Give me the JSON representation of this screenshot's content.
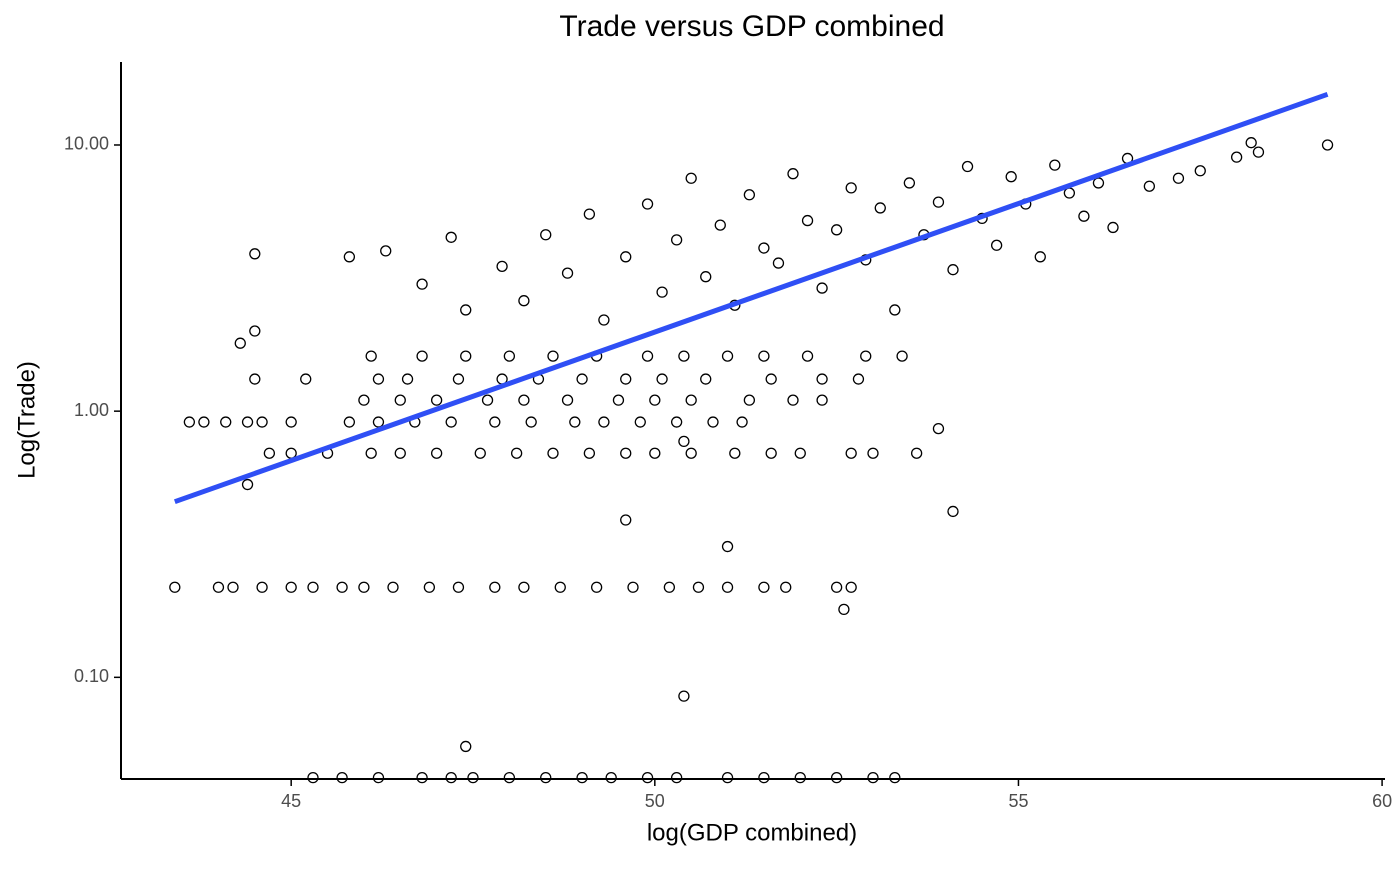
{
  "chart_data": {
    "type": "scatter",
    "title": "Trade versus GDP combined",
    "x_label": "log(GDP combined)",
    "y_label": "Log(Trade)",
    "log_y": true,
    "grid": false,
    "marker_color": "#000000",
    "xlim": [
      42.66,
      60.04
    ],
    "ylim": [
      0.0415,
      20.5
    ],
    "xticks": [
      45,
      50,
      55,
      60
    ],
    "yticks": [
      {
        "value": 0.1,
        "label": "0.10"
      },
      {
        "value": 1,
        "label": "1.00"
      },
      {
        "value": 10,
        "label": "10.00"
      }
    ],
    "x": [
      45.3,
      45.7,
      46.2,
      46.8,
      47.2,
      47.5,
      48.0,
      48.5,
      49.0,
      49.4,
      49.9,
      50.3,
      51.0,
      51.5,
      52.0,
      52.5,
      53.0,
      53.3,
      43.4,
      44.0,
      44.2,
      44.6,
      45.0,
      45.3,
      45.7,
      46.0,
      46.4,
      46.9,
      47.3,
      47.8,
      48.2,
      48.7,
      49.2,
      49.7,
      50.2,
      50.6,
      51.0,
      51.5,
      51.8,
      52.5,
      52.7,
      44.7,
      45.0,
      45.5,
      46.1,
      46.5,
      47.0,
      47.6,
      48.1,
      48.6,
      49.1,
      49.6,
      50.0,
      50.5,
      51.1,
      51.6,
      52.0,
      52.7,
      53.0,
      53.6,
      43.6,
      43.8,
      44.1,
      44.4,
      44.6,
      45.0,
      45.8,
      46.2,
      46.7,
      47.2,
      47.8,
      48.3,
      48.9,
      49.3,
      49.8,
      50.3,
      50.8,
      51.2,
      46.0,
      46.5,
      47.0,
      47.7,
      48.2,
      48.8,
      49.5,
      50.0,
      50.5,
      51.3,
      51.9,
      52.3,
      44.5,
      45.2,
      46.2,
      46.6,
      47.3,
      47.9,
      48.4,
      49.0,
      49.6,
      50.1,
      50.7,
      51.6,
      52.3,
      52.8,
      46.1,
      46.8,
      47.4,
      48.0,
      48.6,
      49.2,
      49.9,
      50.4,
      51.0,
      51.5,
      52.1,
      52.9,
      53.4,
      45.8,
      46.3,
      46.8,
      47.2,
      47.4,
      47.9,
      48.2,
      48.5,
      48.8,
      49.1,
      49.3,
      49.6,
      49.9,
      50.1,
      50.3,
      50.5,
      50.7,
      50.9,
      51.1,
      51.3,
      51.5,
      51.7,
      51.9,
      52.1,
      52.3,
      52.5,
      52.7,
      52.9,
      53.1,
      53.3,
      53.5,
      53.7,
      53.9,
      54.1,
      54.3,
      54.5,
      54.7,
      54.9,
      55.1,
      55.3,
      55.5,
      55.7,
      55.9,
      56.1,
      56.3,
      56.5,
      56.8,
      57.2,
      57.5,
      58.0,
      58.2,
      58.3,
      59.25,
      44.5,
      44.3,
      44.5,
      44.4,
      53.9,
      54.1,
      50.4,
      47.4,
      50.4,
      49.6,
      51.0,
      52.6
    ],
    "values": [
      0.042,
      0.042,
      0.042,
      0.042,
      0.042,
      0.042,
      0.042,
      0.042,
      0.042,
      0.042,
      0.042,
      0.042,
      0.042,
      0.042,
      0.042,
      0.042,
      0.042,
      0.042,
      0.218,
      0.218,
      0.218,
      0.218,
      0.218,
      0.218,
      0.218,
      0.218,
      0.218,
      0.218,
      0.218,
      0.218,
      0.218,
      0.218,
      0.218,
      0.218,
      0.218,
      0.218,
      0.218,
      0.218,
      0.218,
      0.218,
      0.218,
      0.695,
      0.695,
      0.695,
      0.695,
      0.695,
      0.695,
      0.695,
      0.695,
      0.695,
      0.695,
      0.695,
      0.695,
      0.695,
      0.695,
      0.695,
      0.695,
      0.695,
      0.695,
      0.695,
      0.91,
      0.91,
      0.91,
      0.91,
      0.91,
      0.91,
      0.91,
      0.91,
      0.91,
      0.91,
      0.91,
      0.91,
      0.91,
      0.91,
      0.91,
      0.91,
      0.91,
      0.91,
      1.1,
      1.1,
      1.1,
      1.1,
      1.1,
      1.1,
      1.1,
      1.1,
      1.1,
      1.1,
      1.1,
      1.1,
      1.32,
      1.32,
      1.32,
      1.32,
      1.32,
      1.32,
      1.32,
      1.32,
      1.32,
      1.32,
      1.32,
      1.32,
      1.32,
      1.32,
      1.61,
      1.61,
      1.61,
      1.61,
      1.61,
      1.61,
      1.61,
      1.61,
      1.61,
      1.61,
      1.61,
      1.61,
      1.61,
      3.8,
      4.0,
      3.0,
      4.5,
      2.4,
      3.5,
      2.6,
      4.6,
      3.3,
      5.5,
      2.2,
      3.8,
      6.0,
      2.8,
      4.4,
      7.5,
      3.2,
      5.0,
      2.5,
      6.5,
      4.1,
      3.6,
      7.8,
      5.2,
      2.9,
      4.8,
      6.9,
      3.7,
      5.8,
      2.4,
      7.2,
      4.6,
      6.1,
      3.4,
      8.3,
      5.3,
      4.2,
      7.6,
      6.0,
      3.8,
      8.4,
      6.6,
      5.4,
      7.2,
      4.9,
      8.9,
      7.0,
      7.5,
      8.0,
      9.0,
      10.2,
      9.4,
      10.0,
      3.9,
      1.8,
      2.0,
      0.53,
      0.86,
      0.42,
      0.085,
      0.055,
      0.77,
      0.39,
      0.31,
      0.18
    ],
    "trend": {
      "color": "#2f4ff5",
      "x": [
        43.4,
        59.25
      ],
      "values": [
        0.457,
        15.5
      ]
    }
  }
}
